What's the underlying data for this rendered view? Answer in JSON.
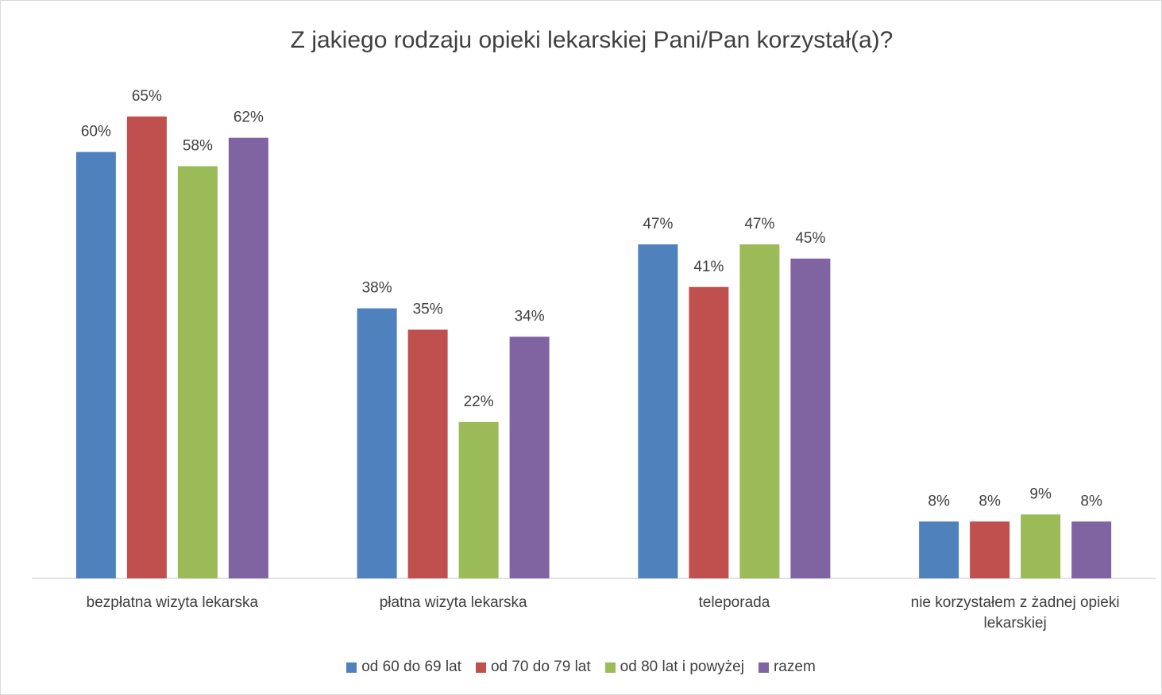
{
  "chart_data": {
    "type": "bar",
    "title": "Z jakiego rodzaju opieki lekarskiej Pani/Pan korzystał(a)?",
    "categories": [
      "bezpłatna wizyta lekarska",
      "płatna wizyta lekarska",
      "teleporada",
      "nie korzystałem z żadnej opieki lekarskiej"
    ],
    "ylim": [
      0,
      70
    ],
    "series": [
      {
        "name": "od 60 do 69 lat",
        "color": "#4f81bd",
        "values": [
          60,
          38,
          47,
          8
        ],
        "value_labels": [
          "60%",
          "38%",
          "47%",
          "8%"
        ]
      },
      {
        "name": "od 70 do 79 lat",
        "color": "#c0504d",
        "values": [
          65,
          35,
          41,
          8
        ],
        "value_labels": [
          "65%",
          "35%",
          "41%",
          "8%"
        ]
      },
      {
        "name": "od 80 lat i powyżej",
        "color": "#9bbb59",
        "values": [
          58,
          22,
          47,
          9
        ],
        "value_labels": [
          "58%",
          "22%",
          "47%",
          "9%"
        ]
      },
      {
        "name": "razem",
        "color": "#8064a2",
        "values": [
          62,
          34,
          45,
          8
        ],
        "value_labels": [
          "62%",
          "34%",
          "45%",
          "8%"
        ]
      }
    ]
  }
}
